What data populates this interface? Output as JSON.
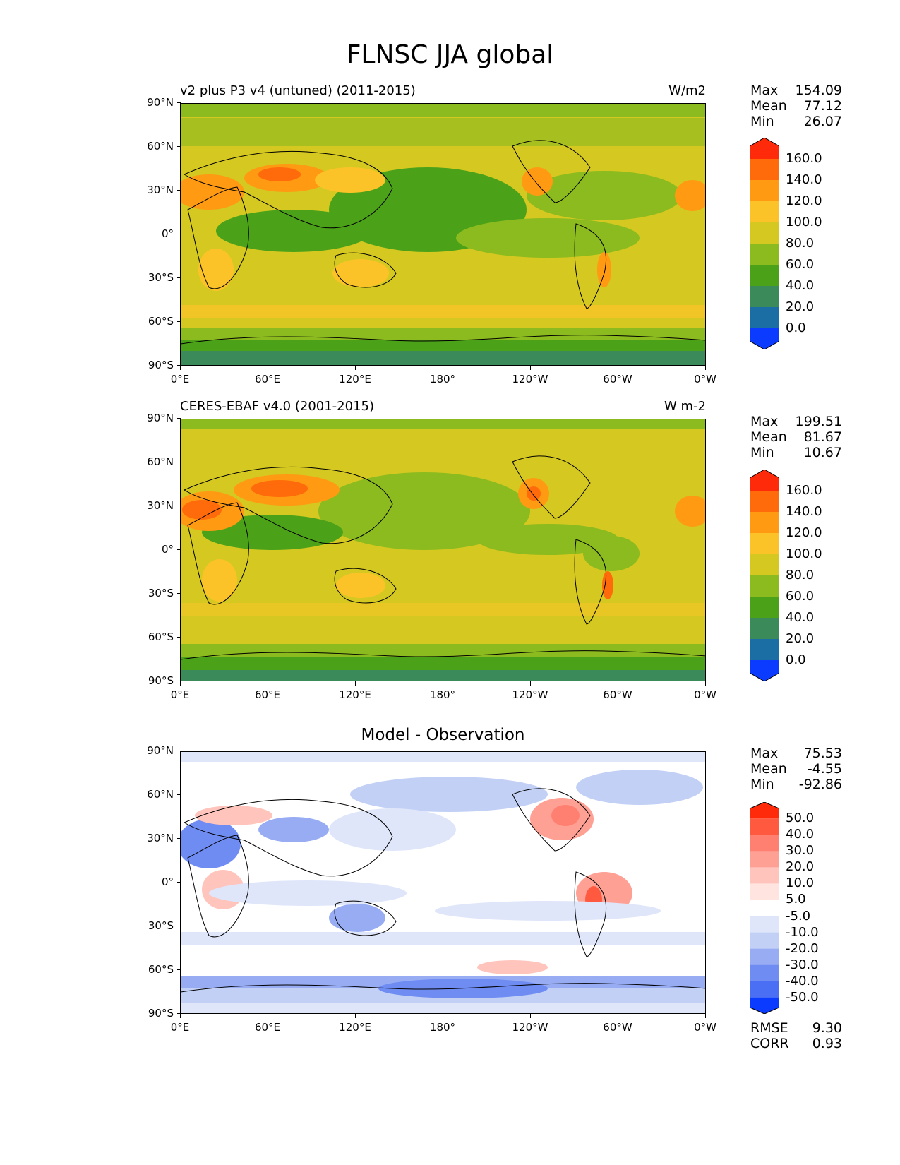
{
  "title": "FLNSC JJA global",
  "lat_ticks": [
    "90°N",
    "60°N",
    "30°N",
    "0°",
    "30°S",
    "60°S",
    "90°S"
  ],
  "lon_ticks": [
    "0°E",
    "60°E",
    "120°E",
    "180°",
    "120°W",
    "60°W",
    "0°W"
  ],
  "panels": [
    {
      "subtitle": "v2 plus P3 v4 (untuned) (2011-2015)",
      "units": "W/m2",
      "stats": {
        "max_label": "Max",
        "max": "154.09",
        "mean_label": "Mean",
        "mean": "77.12",
        "min_label": "Min",
        "min": "26.07"
      },
      "colorbar_labels": [
        "160.0",
        "140.0",
        "120.0",
        "100.0",
        "80.0",
        "60.0",
        "40.0",
        "20.0",
        "0.0"
      ],
      "colorbar_colors": [
        "#ff2a0a",
        "#ff6a0a",
        "#ff9a12",
        "#fcc328",
        "#d4c821",
        "#8bbb1e",
        "#4ba219",
        "#3a8a5a",
        "#1a6ea3",
        "#0a3bff"
      ]
    },
    {
      "subtitle": "CERES-EBAF v4.0 (2001-2015)",
      "units": "W m-2",
      "stats": {
        "max_label": "Max",
        "max": "199.51",
        "mean_label": "Mean",
        "mean": "81.67",
        "min_label": "Min",
        "min": "10.67"
      },
      "colorbar_labels": [
        "160.0",
        "140.0",
        "120.0",
        "100.0",
        "80.0",
        "60.0",
        "40.0",
        "20.0",
        "0.0"
      ],
      "colorbar_colors": [
        "#ff2a0a",
        "#ff6a0a",
        "#ff9a12",
        "#fcc328",
        "#d4c821",
        "#8bbb1e",
        "#4ba219",
        "#3a8a5a",
        "#1a6ea3",
        "#0a3bff"
      ]
    },
    {
      "subtitle": "Model - Observation",
      "units": "",
      "stats": {
        "max_label": "Max",
        "max": "75.53",
        "mean_label": "Mean",
        "mean": "-4.55",
        "min_label": "Min",
        "min": "-92.86"
      },
      "colorbar_labels": [
        "50.0",
        "40.0",
        "30.0",
        "20.0",
        "10.0",
        "5.0",
        "-5.0",
        "-10.0",
        "-20.0",
        "-30.0",
        "-40.0",
        "-50.0"
      ],
      "colorbar_colors": [
        "#ff2a0a",
        "#ff5a40",
        "#ff8070",
        "#ffa095",
        "#ffc4bc",
        "#ffe4e0",
        "#ffffff",
        "#dfe6fa",
        "#c2d0f5",
        "#97acf2",
        "#6f8cf3",
        "#4a6ff5",
        "#0a3bff"
      ],
      "rmse_label": "RMSE",
      "rmse": "9.30",
      "corr_label": "CORR",
      "corr": "0.93"
    }
  ]
}
